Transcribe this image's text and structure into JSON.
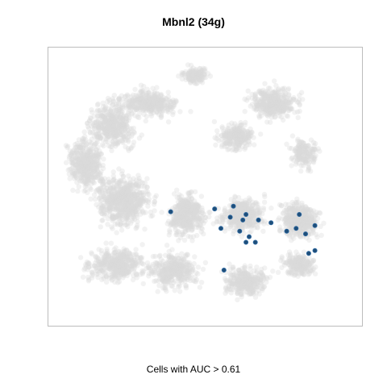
{
  "chart_data": {
    "type": "scatter",
    "title": "Mbnl2 (34g)",
    "xlabel": "Cells with AUC > 0.61",
    "ylabel": "",
    "grid": false,
    "axes_ticks": false,
    "colors": {
      "background_cells": "#d9d9d9",
      "highlight": "#1f4e79",
      "frame": "#bdbdbd"
    },
    "series": [
      {
        "name": "",
        "role": "highlighted cells",
        "points": [
          [
            0.39,
            0.41
          ],
          [
            0.53,
            0.42
          ],
          [
            0.59,
            0.43
          ],
          [
            0.63,
            0.4
          ],
          [
            0.58,
            0.39
          ],
          [
            0.62,
            0.38
          ],
          [
            0.67,
            0.38
          ],
          [
            0.71,
            0.37
          ],
          [
            0.55,
            0.35
          ],
          [
            0.61,
            0.34
          ],
          [
            0.64,
            0.32
          ],
          [
            0.66,
            0.3
          ],
          [
            0.63,
            0.3
          ],
          [
            0.76,
            0.34
          ],
          [
            0.79,
            0.35
          ],
          [
            0.82,
            0.33
          ],
          [
            0.8,
            0.4
          ],
          [
            0.85,
            0.36
          ],
          [
            0.83,
            0.26
          ],
          [
            0.85,
            0.27
          ],
          [
            0.56,
            0.2
          ]
        ]
      }
    ]
  }
}
